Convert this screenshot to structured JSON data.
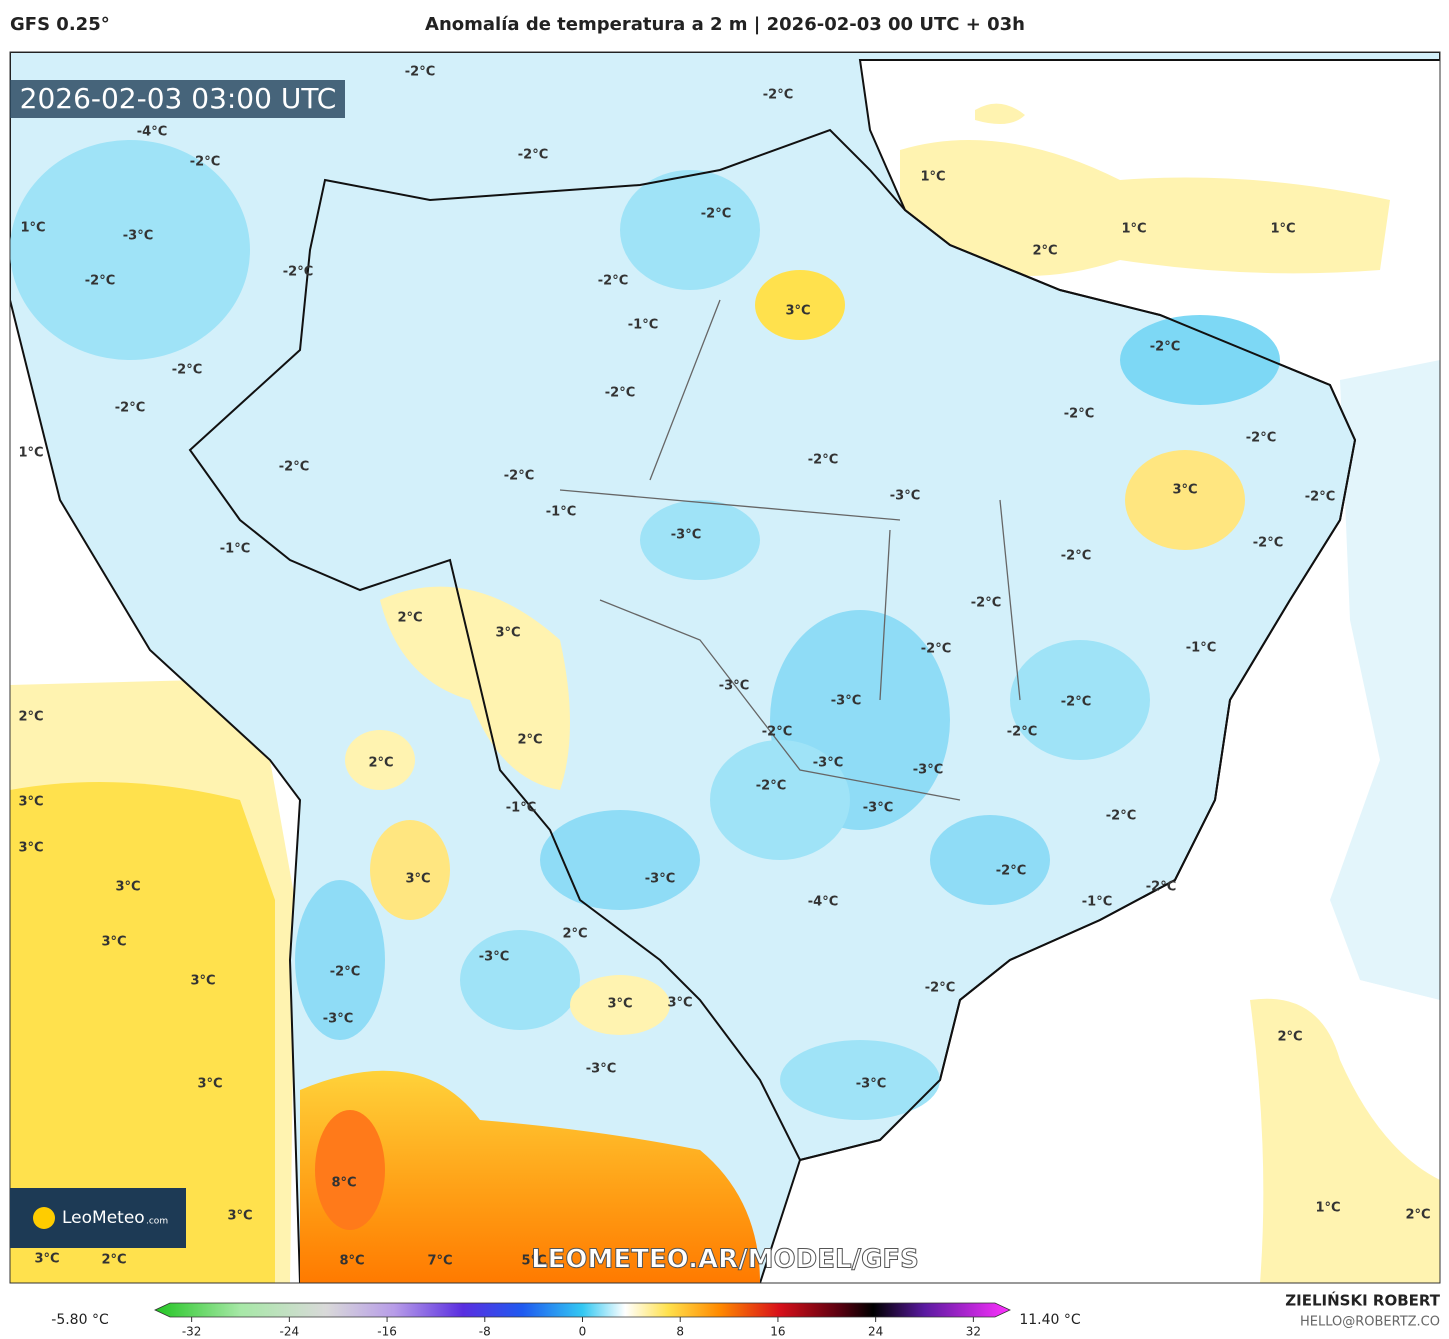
{
  "header": {
    "model": "GFS 0.25°",
    "title": "Anomalía de temperatura a 2 m | 2026-02-03 00 UTC + 03h"
  },
  "timestamp": "2026-02-03 03:00 UTC",
  "logo": {
    "name": "LeoMeteo",
    "suffix": ".com"
  },
  "watermark": "LEOMETEO.AR/MODEL/GFS",
  "contour_labels": [
    "-2°C",
    "-4°C",
    "-2°C",
    "-2°C",
    "-2°C",
    "1°C",
    "-2°C",
    "1°C",
    "1°C",
    "1°C",
    "-3°C",
    "2°C",
    "-2°C",
    "-2°C",
    "-2°C",
    "3°C",
    "-1°C",
    "-2°C",
    "-2°C",
    "-2°C",
    "-2°C",
    "-2°C",
    "-2°C",
    "1°C",
    "-2°C",
    "-2°C",
    "-2°C",
    "3°C",
    "-3°C",
    "-2°C",
    "-1°C",
    "-3°C",
    "-1°C",
    "-2°C",
    "-2°C",
    "-2°C",
    "2°C",
    "3°C",
    "-2°C",
    "-1°C",
    "-3°C",
    "-3°C",
    "-2°C",
    "2°C",
    "2°C",
    "-2°C",
    "-2°C",
    "-3°C",
    "-3°C",
    "2°C",
    "-2°C",
    "3°C",
    "-1°C",
    "-3°C",
    "-2°C",
    "3°C",
    "-2°C",
    "-3°C",
    "3°C",
    "3°C",
    "-2°C",
    "-4°C",
    "-1°C",
    "3°C",
    "2°C",
    "-3°C",
    "-2°C",
    "3°C",
    "-2°C",
    "3°C",
    "3°C",
    "-3°C",
    "2°C",
    "-3°C",
    "-3°C",
    "3°C",
    "8°C",
    "1°C",
    "3°C",
    "2°C",
    "3°C",
    "2°C",
    "8°C",
    "7°C",
    "5°C"
  ],
  "colorbar": {
    "min_label": "-5.80 °C",
    "max_label": "11.40 °C",
    "lim": [
      -35,
      35
    ],
    "ticks": [
      -32,
      -24,
      -16,
      -8,
      0,
      8,
      16,
      24,
      32
    ]
  },
  "credits": {
    "author": "ZIELIŃSKI ROBERT",
    "contact": "HELLO@ROBERTZ.CO"
  }
}
